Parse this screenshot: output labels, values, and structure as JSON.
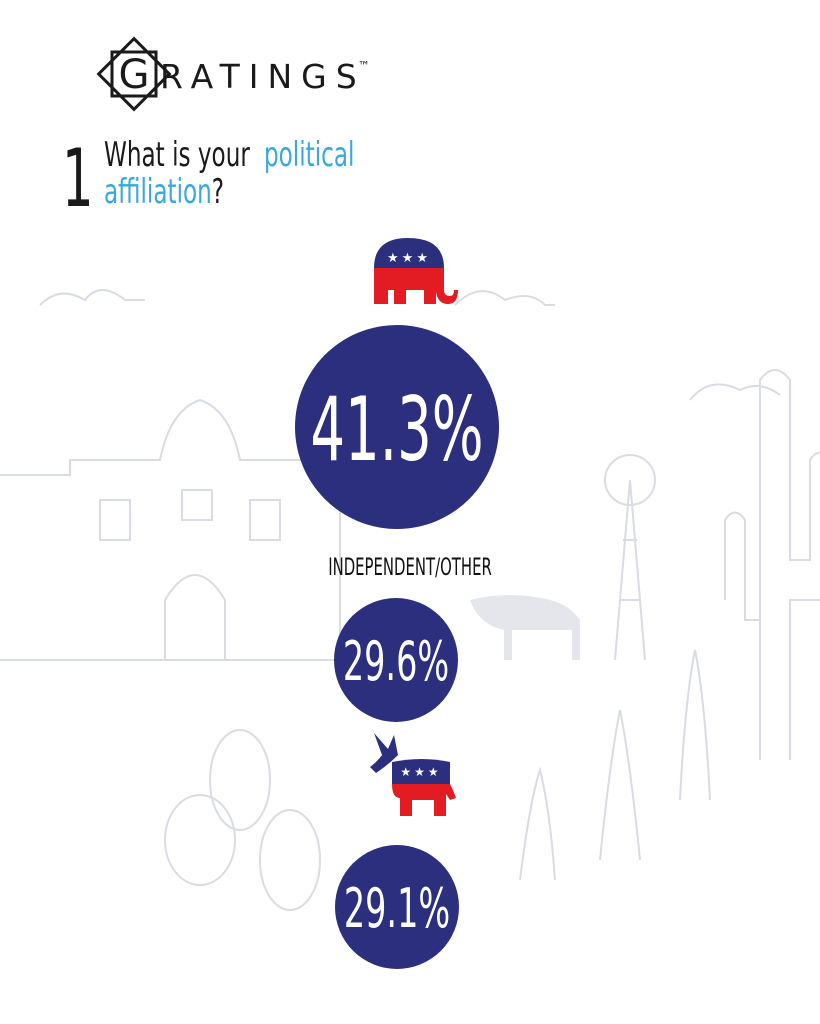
{
  "logo": {
    "initial": "G",
    "rest": "RATINGS",
    "trademark": "™"
  },
  "question": {
    "number": "1",
    "line1_plain": "What is your",
    "line1_highlight": "political",
    "line2_highlight": "affiliation",
    "line2_plain": "?"
  },
  "results": [
    {
      "value": "41.3%"
    },
    {
      "label": "INDEPENDENT/OTHER",
      "value": "29.6%"
    },
    {
      "value": "29.1%"
    }
  ]
}
